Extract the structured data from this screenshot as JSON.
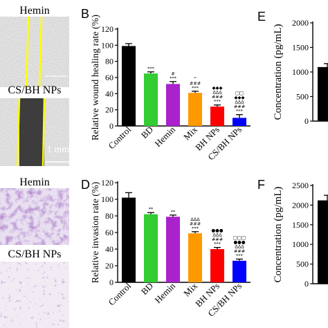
{
  "panels": {
    "A": {
      "top_label": "Hemin",
      "bottom_label": "CS/BH NPs",
      "scale_label": "1 mm"
    },
    "C": {
      "top_label": "Hemin",
      "bottom_label": "CS/BH NPs"
    },
    "B": {
      "letter": "B"
    },
    "D": {
      "letter": "D"
    },
    "E": {
      "letter": "E"
    },
    "F": {
      "letter": "F"
    }
  },
  "chart_data": [
    {
      "id": "B",
      "type": "bar",
      "title": "",
      "xlabel": "",
      "ylabel": "Relative wound healing rate (%)",
      "ylim": [
        0,
        120
      ],
      "yticks": [
        0,
        20,
        40,
        60,
        80,
        100,
        120
      ],
      "categories": [
        "Control",
        "BD",
        "Hemin",
        "Mix",
        "BH NPs",
        "CS/BH NPs"
      ],
      "values": [
        99,
        65,
        52,
        41,
        24,
        10
      ],
      "errors": [
        3,
        2,
        3,
        2,
        2,
        4
      ],
      "colors": [
        "#000000",
        "#33cc33",
        "#aa22cc",
        "#ff9900",
        "#ff0000",
        "#0000ff"
      ],
      "annotations": [
        [],
        [
          "***"
        ],
        [
          "#",
          "***"
        ],
        [
          "^",
          "###",
          "***"
        ],
        [
          "◆◆◆",
          "ΔΔΔ",
          "###",
          "***"
        ],
        [
          "□□",
          "◆◆◆",
          "ΔΔΔ",
          "###",
          "***"
        ]
      ]
    },
    {
      "id": "D",
      "type": "bar",
      "title": "",
      "xlabel": "",
      "ylabel": "Relative invasion rate (%)",
      "ylim": [
        0,
        120
      ],
      "yticks": [
        0,
        20,
        40,
        60,
        80,
        100,
        120
      ],
      "categories": [
        "Control",
        "BD",
        "Hemin",
        "Mix",
        "BH NPs",
        "CS/BH NPs"
      ],
      "values": [
        102,
        82,
        79,
        59,
        40,
        26
      ],
      "errors": [
        6,
        2,
        2,
        2,
        2,
        2
      ],
      "colors": [
        "#000000",
        "#33cc33",
        "#aa22cc",
        "#ff9900",
        "#ff0000",
        "#0000ff"
      ],
      "annotations": [
        [],
        [
          "**"
        ],
        [
          "**"
        ],
        [
          "ΔΔΔ",
          "###",
          "***"
        ],
        [
          "●●●",
          "ΔΔΔ",
          "###",
          "***"
        ],
        [
          "□□□",
          "●●●",
          "ΔΔΔ",
          "###",
          "***"
        ]
      ]
    },
    {
      "id": "E",
      "type": "bar",
      "title": "",
      "xlabel": "",
      "ylabel": "Concentration (pg/mL)",
      "ylim": [
        0,
        2000
      ],
      "yticks": [
        0,
        500,
        1000,
        1500,
        2000
      ],
      "categories": [
        ""
      ],
      "values": [
        1100
      ],
      "errors": [
        70
      ],
      "colors": [
        "#000000"
      ]
    },
    {
      "id": "F",
      "type": "bar",
      "title": "",
      "xlabel": "",
      "ylabel": "Concentration (pg/mL)",
      "ylim": [
        0,
        2500
      ],
      "yticks": [
        0,
        500,
        1000,
        1500,
        2000,
        2500
      ],
      "categories": [
        ""
      ],
      "values": [
        2120
      ],
      "errors": [
        130
      ],
      "colors": [
        "#000000"
      ]
    }
  ]
}
